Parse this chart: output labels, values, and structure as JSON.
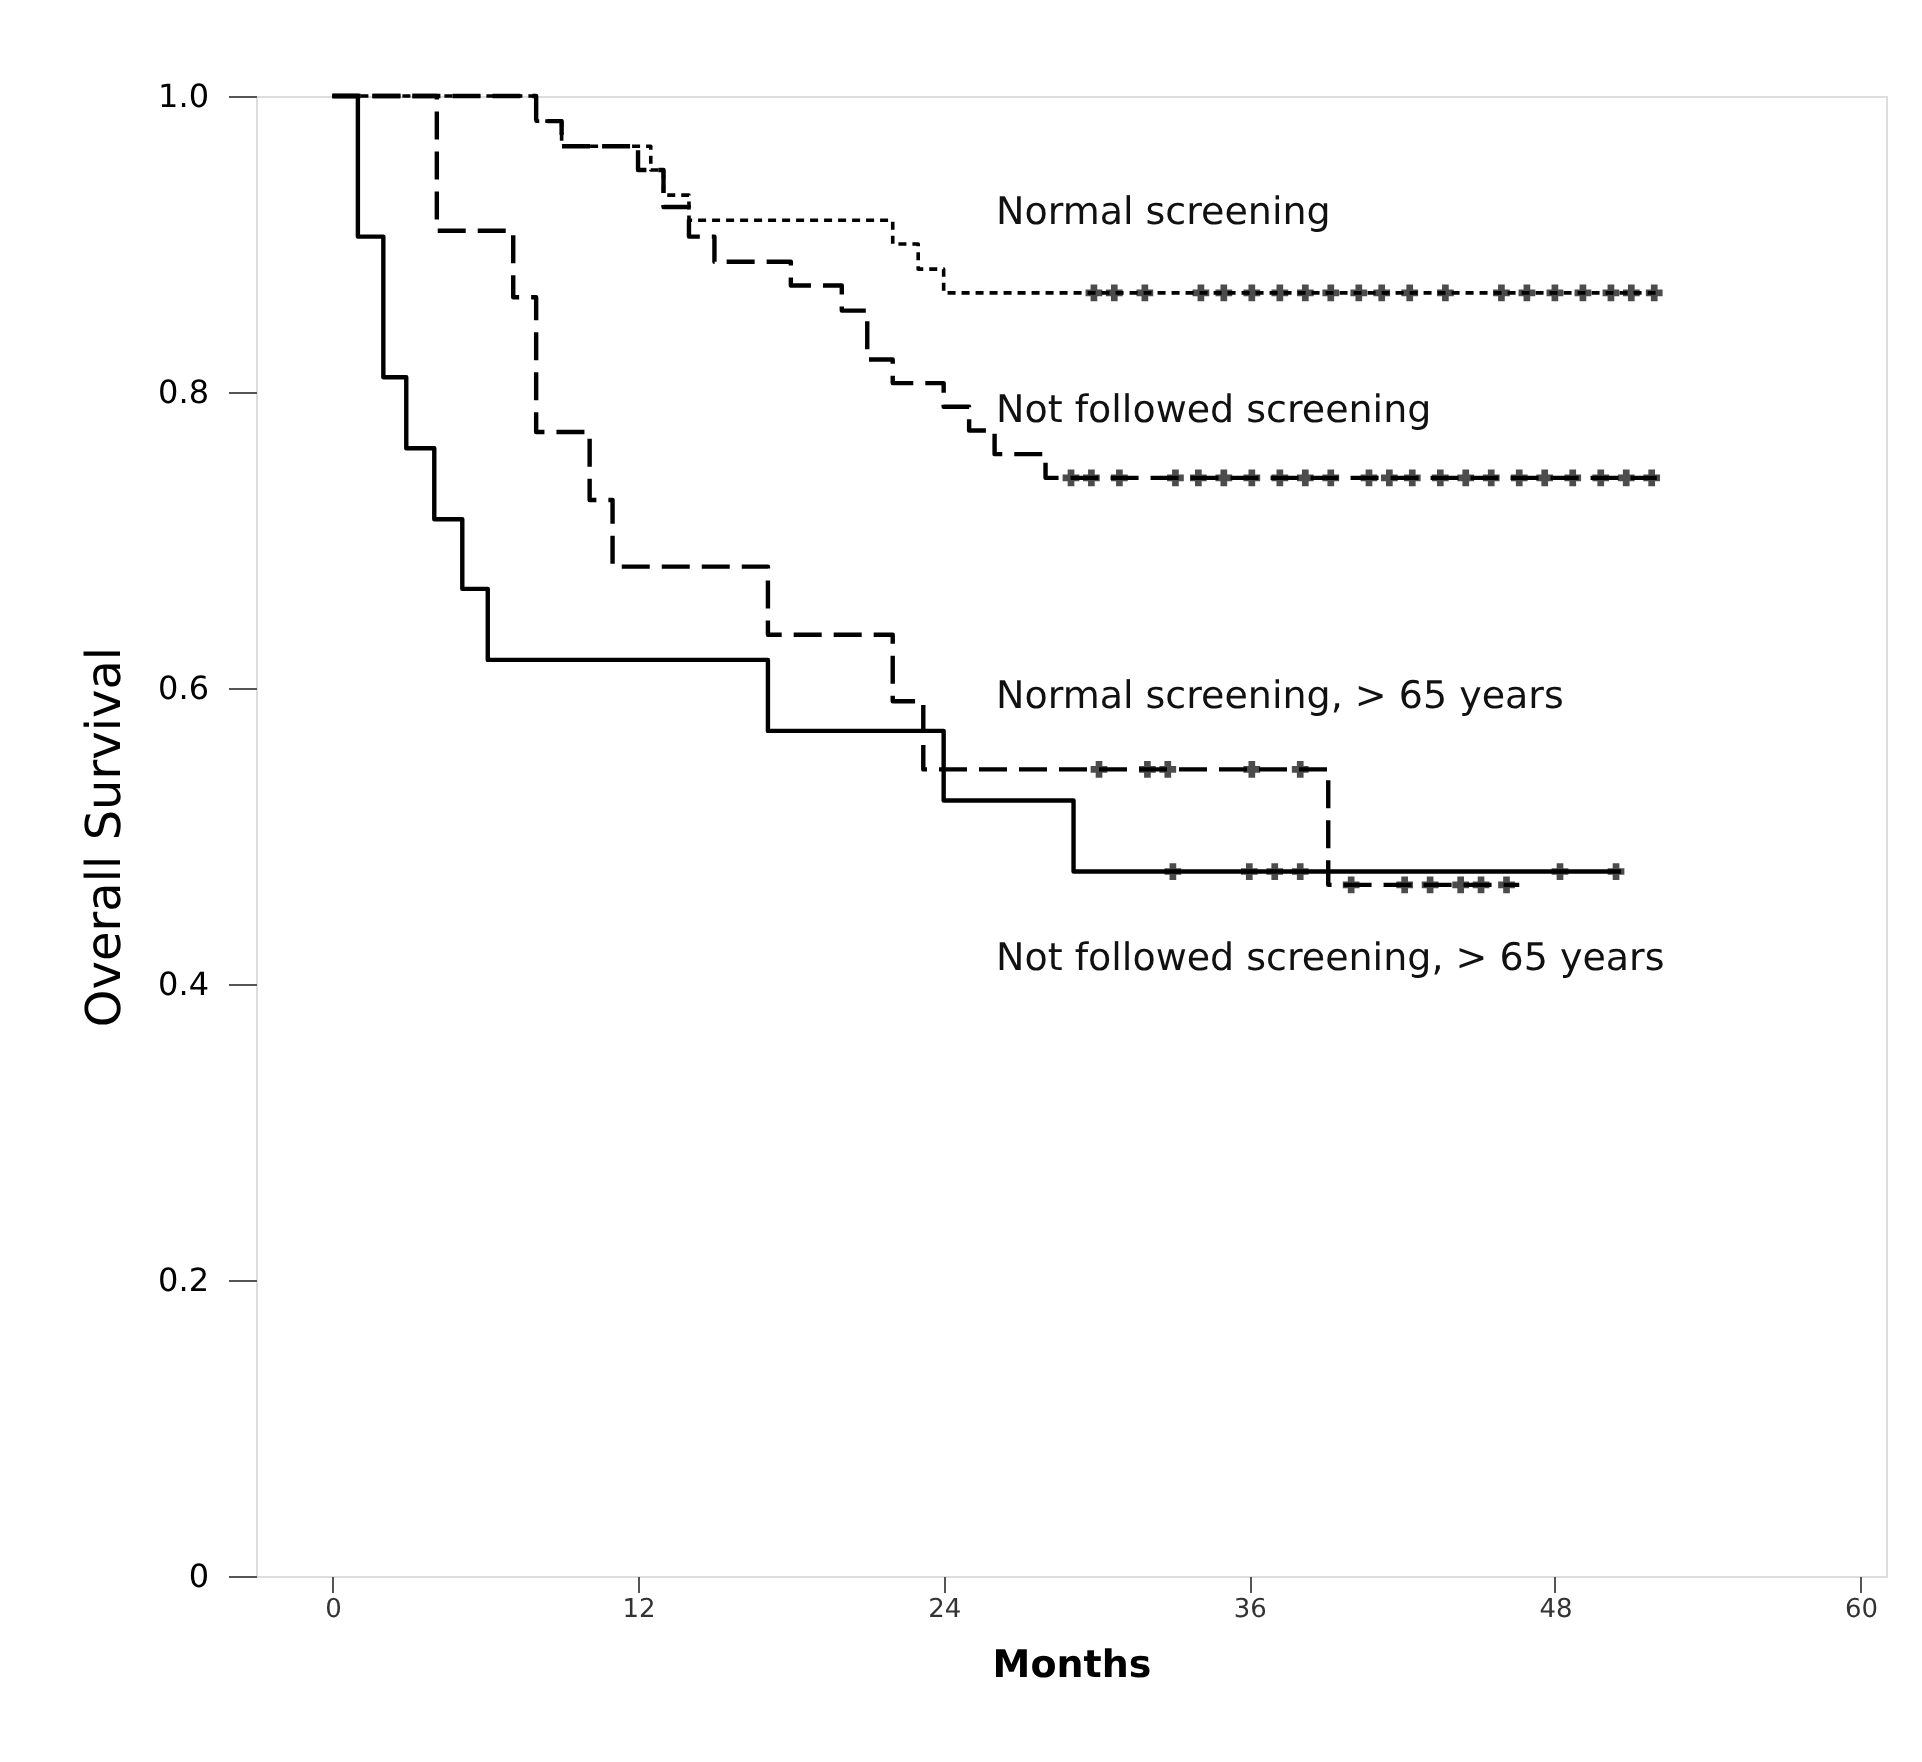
{
  "chart_data": {
    "type": "step",
    "xlabel": "Months",
    "ylabel": "Overall Survival",
    "xlim": [
      -3,
      61
    ],
    "xticks": [
      0,
      12,
      24,
      36,
      48,
      60
    ],
    "ylim": [
      0,
      1.0
    ],
    "yticks": [
      {
        "value": 0,
        "label": "0"
      },
      0.2,
      0.4,
      0.6,
      0.8,
      {
        "value": 1.0,
        "label": "1.0"
      }
    ],
    "grid": false,
    "series": [
      {
        "color": "#000000",
        "line_style": "dotted",
        "marker": "none",
        "x": [
          0,
          8,
          9,
          12.5,
          13,
          14,
          22,
          23,
          24,
          52
        ],
        "values": [
          1.0,
          0.983,
          0.966,
          0.95,
          0.933,
          0.916,
          0.9,
          0.883,
          0.867,
          0.867
        ]
      },
      {
        "color": "#000000",
        "line_style": "dashed",
        "marker": "none",
        "x": [
          0,
          8,
          9,
          12,
          13,
          14,
          15,
          18,
          20,
          21,
          22,
          24,
          25,
          26,
          28,
          52
        ],
        "values": [
          1.0,
          0.983,
          0.966,
          0.95,
          0.925,
          0.905,
          0.888,
          0.872,
          0.855,
          0.822,
          0.806,
          0.79,
          0.774,
          0.758,
          0.742,
          0.742
        ]
      },
      {
        "color": "#000000",
        "line_style": "dashed",
        "marker": "none",
        "x": [
          0,
          4.1,
          7.1,
          8,
          10.1,
          11,
          17.1,
          22,
          23.2,
          39.1,
          46.6
        ],
        "values": [
          1.0,
          0.909,
          0.864,
          0.773,
          0.727,
          0.682,
          0.636,
          0.591,
          0.545,
          0.467,
          0.467
        ]
      },
      {
        "color": "#000000",
        "line_style": "solid",
        "marker": "none",
        "x": [
          0,
          1,
          2,
          2.9,
          4,
          5.1,
          6.1,
          17.1,
          24,
          29.1,
          50.6
        ],
        "values": [
          1.0,
          0.905,
          0.81,
          0.762,
          0.714,
          0.667,
          0.619,
          0.571,
          0.524,
          0.476,
          0.476
        ]
      },
      {
        "type": "scatter",
        "color": "#000000",
        "marker": "cross",
        "x": [
          29.9,
          30.7,
          31.9,
          34.1,
          35.0,
          36.1,
          37.2,
          38.2,
          39.2,
          40.3,
          41.2,
          42.3,
          43.7,
          45.9,
          46.9,
          48.0,
          49.1,
          50.2,
          51.0,
          51.9
        ],
        "values": [
          0.867,
          0.867,
          0.867,
          0.867,
          0.867,
          0.867,
          0.867,
          0.867,
          0.867,
          0.867,
          0.867,
          0.867,
          0.867,
          0.867,
          0.867,
          0.867,
          0.867,
          0.867,
          0.867,
          0.867
        ]
      },
      {
        "type": "scatter",
        "color": "#000000",
        "marker": "cross",
        "x": [
          29.0,
          29.8,
          30.9,
          33.1,
          34.0,
          35.0,
          36.1,
          37.2,
          38.2,
          39.2,
          40.7,
          41.5,
          42.4,
          43.5,
          44.5,
          45.5,
          46.6,
          47.6,
          48.7,
          49.8,
          50.8,
          51.8
        ],
        "values": [
          0.742,
          0.742,
          0.742,
          0.742,
          0.742,
          0.742,
          0.742,
          0.742,
          0.742,
          0.742,
          0.742,
          0.742,
          0.742,
          0.742,
          0.742,
          0.742,
          0.742,
          0.742,
          0.742,
          0.742,
          0.742,
          0.742
        ]
      },
      {
        "type": "scatter",
        "color": "#000000",
        "marker": "cross",
        "x": [
          30.1,
          32.0,
          32.8,
          36.1,
          38.0,
          40.0,
          42.1,
          43.1,
          44.3,
          45.1,
          46.1
        ],
        "values": [
          0.545,
          0.545,
          0.545,
          0.545,
          0.545,
          0.467,
          0.467,
          0.467,
          0.467,
          0.467,
          0.467
        ]
      },
      {
        "type": "scatter",
        "color": "#000000",
        "marker": "cross",
        "x": [
          33.0,
          36.0,
          37.0,
          38.0,
          48.2,
          50.4
        ],
        "values": [
          0.476,
          0.476,
          0.476,
          0.476,
          0.476,
          0.476
        ]
      }
    ],
    "annotations": [
      "Normal screening",
      "Not followed screening",
      "Normal screening, > 65 years",
      "Not followed screening, > 65 years"
    ]
  }
}
